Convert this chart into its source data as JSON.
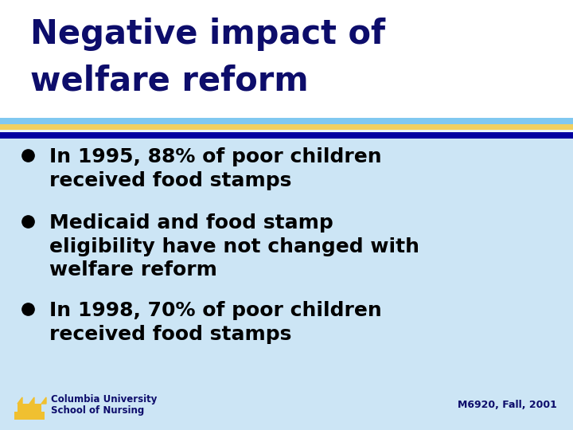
{
  "title_line1": "Negative impact of",
  "title_line2": "welfare reform",
  "title_color": "#0d0d6b",
  "title_bg": "#ffffff",
  "content_bg": "#cce5f5",
  "bullet_color": "#000000",
  "bullet_text_color": "#000000",
  "bullets": [
    "In 1995, 88% of poor children\nreceived food stamps",
    "Medicaid and food stamp\neligibility have not changed with\nwelfare reform",
    "In 1998, 70% of poor children\nreceived food stamps"
  ],
  "stripe_light_blue": "#80c8f0",
  "stripe_yellow": "#f0d060",
  "stripe_white": "#e8f4fc",
  "stripe_dark_blue": "#0000a0",
  "footer_left_line1": "Columbia University",
  "footer_left_line2": "School of Nursing",
  "footer_right": "M6920, Fall, 2001",
  "footer_color": "#0d0d6b",
  "crown_color": "#f0c030"
}
